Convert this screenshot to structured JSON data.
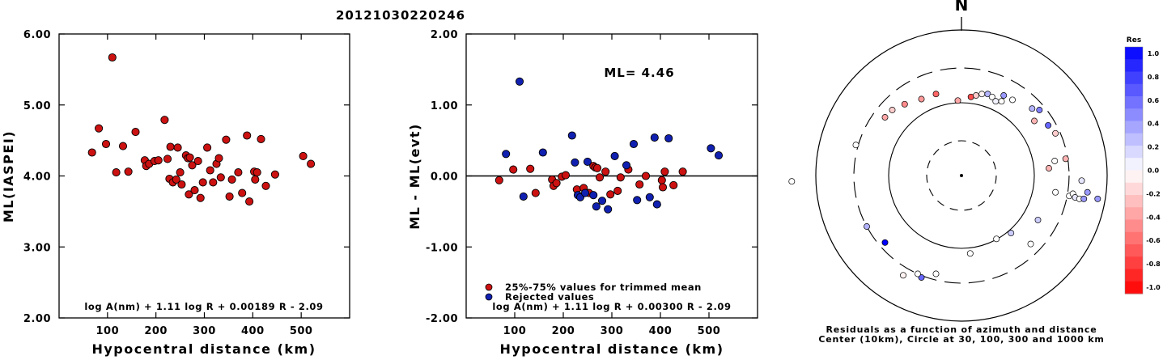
{
  "title": "20121030220246",
  "chart_data": [
    {
      "type": "scatter",
      "xlabel": "Hypocentral distance (km)",
      "ylabel": "ML(IASPEI)",
      "xlim": [
        0,
        600
      ],
      "ylim": [
        2.0,
        6.0
      ],
      "xticks": [
        "100",
        "200",
        "300",
        "400",
        "500"
      ],
      "yticks": [
        "2.00",
        "3.00",
        "4.00",
        "5.00",
        "6.00"
      ],
      "formula": "log A(nm) + 1.11 log R + 0.00189 R - 2.09",
      "series": [
        {
          "color": "#cc1111",
          "points": [
            [
              68,
              4.33
            ],
            [
              82,
              4.67
            ],
            [
              97,
              4.45
            ],
            [
              110,
              5.67
            ],
            [
              118,
              4.05
            ],
            [
              132,
              4.42
            ],
            [
              143,
              4.06
            ],
            [
              158,
              4.62
            ],
            [
              177,
              4.22
            ],
            [
              180,
              4.14
            ],
            [
              186,
              4.17
            ],
            [
              197,
              4.21
            ],
            [
              205,
              4.22
            ],
            [
              218,
              4.79
            ],
            [
              224,
              4.24
            ],
            [
              228,
              3.96
            ],
            [
              230,
              4.41
            ],
            [
              235,
              3.91
            ],
            [
              242,
              3.95
            ],
            [
              245,
              4.4
            ],
            [
              250,
              4.05
            ],
            [
              253,
              3.88
            ],
            [
              262,
              4.29
            ],
            [
              266,
              4.25
            ],
            [
              268,
              3.74
            ],
            [
              270,
              4.26
            ],
            [
              275,
              4.15
            ],
            [
              280,
              3.8
            ],
            [
              287,
              4.21
            ],
            [
              292,
              3.69
            ],
            [
              297,
              3.91
            ],
            [
              306,
              4.4
            ],
            [
              312,
              4.08
            ],
            [
              318,
              3.91
            ],
            [
              325,
              4.17
            ],
            [
              330,
              4.25
            ],
            [
              334,
              3.98
            ],
            [
              345,
              4.51
            ],
            [
              352,
              3.71
            ],
            [
              357,
              3.95
            ],
            [
              370,
              4.05
            ],
            [
              378,
              3.76
            ],
            [
              388,
              4.57
            ],
            [
              393,
              3.64
            ],
            [
              403,
              4.06
            ],
            [
              405,
              3.95
            ],
            [
              409,
              4.05
            ],
            [
              417,
              4.52
            ],
            [
              427,
              3.86
            ],
            [
              446,
              4.02
            ],
            [
              504,
              4.28
            ],
            [
              520,
              4.17
            ]
          ]
        }
      ]
    },
    {
      "type": "scatter",
      "xlabel": "Hypocentral distance (km)",
      "ylabel": "ML - ML(evt)",
      "xlim": [
        0,
        600
      ],
      "ylim": [
        -2.0,
        2.0
      ],
      "xticks": [
        "100",
        "200",
        "300",
        "400",
        "500"
      ],
      "yticks": [
        "-2.00",
        "-1.00",
        "0.00",
        "1.00",
        "2.00"
      ],
      "annotation": "ML= 4.46",
      "formula": "log A(nm) + 1.11 log R + 0.00300 R - 2.09",
      "legend": [
        "25%-75% values for trimmed mean",
        "Rejected values"
      ],
      "series": [
        {
          "name": "25%-75% values for trimmed mean",
          "color": "#cc1111",
          "points": [
            [
              68,
              -0.06
            ],
            [
              97,
              0.09
            ],
            [
              132,
              0.1
            ],
            [
              143,
              -0.24
            ],
            [
              177,
              -0.05
            ],
            [
              180,
              -0.14
            ],
            [
              186,
              -0.1
            ],
            [
              197,
              -0.01
            ],
            [
              205,
              0.01
            ],
            [
              228,
              -0.19
            ],
            [
              242,
              -0.17
            ],
            [
              253,
              -0.24
            ],
            [
              262,
              0.14
            ],
            [
              266,
              0.12
            ],
            [
              270,
              0.11
            ],
            [
              275,
              -0.02
            ],
            [
              287,
              0.06
            ],
            [
              297,
              -0.26
            ],
            [
              312,
              -0.21
            ],
            [
              318,
              -0.02
            ],
            [
              334,
              0.09
            ],
            [
              357,
              -0.12
            ],
            [
              370,
              0.0
            ],
            [
              403,
              -0.06
            ],
            [
              405,
              -0.16
            ],
            [
              409,
              0.06
            ],
            [
              427,
              -0.13
            ],
            [
              446,
              0.06
            ]
          ]
        },
        {
          "name": "Rejected values",
          "color": "#1020b0",
          "points": [
            [
              82,
              0.31
            ],
            [
              110,
              1.33
            ],
            [
              118,
              -0.29
            ],
            [
              158,
              0.33
            ],
            [
              218,
              0.57
            ],
            [
              224,
              0.19
            ],
            [
              230,
              -0.27
            ],
            [
              235,
              -0.3
            ],
            [
              245,
              -0.24
            ],
            [
              250,
              0.2
            ],
            [
              262,
              -0.27
            ],
            [
              268,
              -0.43
            ],
            [
              280,
              -0.35
            ],
            [
              292,
              -0.47
            ],
            [
              306,
              0.28
            ],
            [
              330,
              0.15
            ],
            [
              345,
              0.45
            ],
            [
              352,
              -0.34
            ],
            [
              378,
              -0.3
            ],
            [
              388,
              0.54
            ],
            [
              393,
              -0.4
            ],
            [
              417,
              0.53
            ],
            [
              504,
              0.39
            ],
            [
              520,
              0.29
            ]
          ]
        }
      ]
    },
    {
      "type": "scatter",
      "subtype": "polar-residual-map",
      "north_label": "N",
      "caption_line1": "Residuals as a function of azimuth and distance",
      "caption_line2": "Center (10km), Circle at 30, 100, 300 and 1000 km",
      "colorbar_title": "Res",
      "colorbar_ticks": [
        "1.0",
        "0.8",
        "0.6",
        "0.4",
        "0.2",
        "0.0",
        "-0.2",
        "-0.4",
        "-0.6",
        "-0.8",
        "-1.0"
      ],
      "positive_color": "#0000ff",
      "negative_color": "#ff0000",
      "points": [
        [
          -1.05,
          0.8,
          -0.35
        ],
        [
          -0.95,
          0.9,
          -0.2
        ],
        [
          -0.78,
          0.98,
          -0.45
        ],
        [
          -0.55,
          1.05,
          -0.4
        ],
        [
          -0.35,
          1.12,
          -0.6
        ],
        [
          -0.05,
          1.03,
          -0.35
        ],
        [
          0.13,
          1.08,
          -0.7
        ],
        [
          0.2,
          1.1,
          -0.2
        ],
        [
          0.28,
          1.12,
          -0.05
        ],
        [
          0.36,
          1.12,
          0.3
        ],
        [
          0.42,
          1.08,
          0.0
        ],
        [
          0.47,
          1.02,
          0.05
        ],
        [
          0.55,
          1.02,
          0.0
        ],
        [
          0.58,
          1.1,
          0.4
        ],
        [
          0.7,
          1.04,
          0.0
        ],
        [
          0.97,
          0.92,
          0.3
        ],
        [
          1.07,
          0.9,
          0.5
        ],
        [
          1.0,
          0.75,
          -0.3
        ],
        [
          1.19,
          0.69,
          0.6
        ],
        [
          1.29,
          0.58,
          -0.2
        ],
        [
          1.2,
          0.1,
          -0.3
        ],
        [
          1.28,
          0.2,
          0.0
        ],
        [
          1.43,
          0.23,
          -0.3
        ],
        [
          1.29,
          -0.23,
          0.0
        ],
        [
          1.48,
          -0.28,
          0.0
        ],
        [
          1.53,
          -0.25,
          0.0
        ],
        [
          1.56,
          -0.3,
          0.1
        ],
        [
          1.62,
          -0.32,
          0.0
        ],
        [
          1.68,
          -0.32,
          0.4
        ],
        [
          1.73,
          -0.23,
          0.4
        ],
        [
          1.65,
          -0.07,
          0.1
        ],
        [
          1.87,
          -0.32,
          0.4
        ],
        [
          1.05,
          -0.61,
          0.2
        ],
        [
          0.95,
          -0.94,
          0.0
        ],
        [
          0.68,
          -0.79,
          0.2
        ],
        [
          0.48,
          -0.87,
          0.0
        ],
        [
          0.12,
          -1.07,
          0.0
        ],
        [
          -0.35,
          -1.35,
          0.0
        ],
        [
          -0.55,
          -1.4,
          0.6
        ],
        [
          -0.6,
          -1.35,
          0.0
        ],
        [
          -0.8,
          -1.37,
          -0.05
        ],
        [
          -1.05,
          -0.92,
          1.0
        ],
        [
          -1.3,
          -0.7,
          0.3
        ],
        [
          -1.45,
          0.42,
          0.0
        ],
        [
          -2.33,
          -0.08,
          0.0
        ]
      ]
    }
  ]
}
